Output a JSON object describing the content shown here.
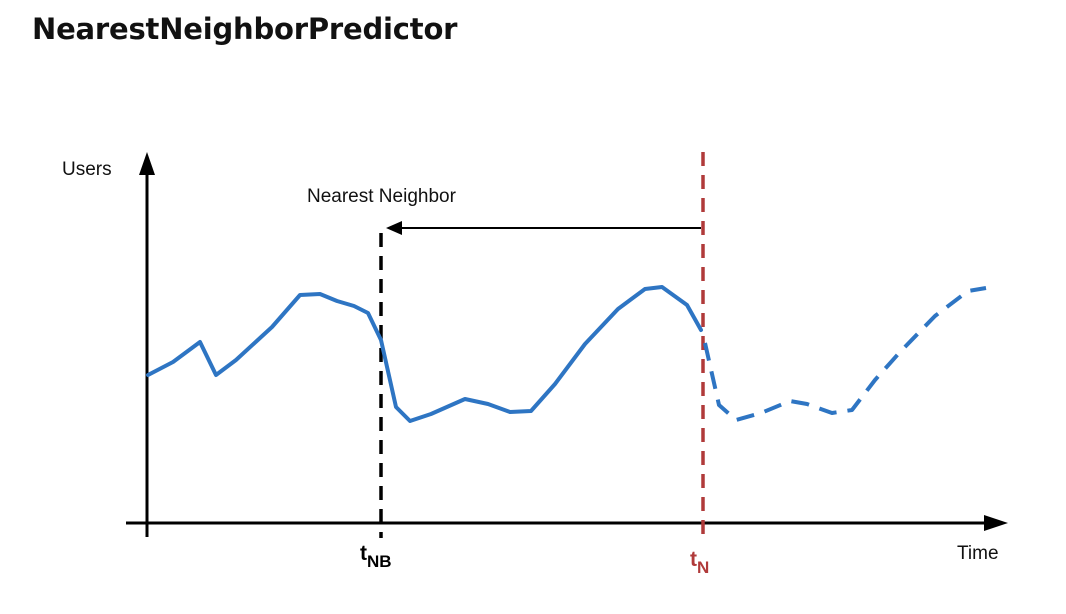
{
  "title": "NearestNeighborPredictor",
  "y_axis_label": "Users",
  "x_axis_label": "Time",
  "arrow_label": "Nearest Neighbor",
  "markers": {
    "neighbor": {
      "base": "t",
      "sub": "NB",
      "color": "#000000"
    },
    "current": {
      "base": "t",
      "sub": "N",
      "color": "#B03A3A"
    }
  },
  "colors": {
    "series": "#2E75C3",
    "axis": "#000000",
    "current_marker": "#B03A3A"
  },
  "line_style": {
    "history": "solid",
    "forecast": "dashed"
  }
}
